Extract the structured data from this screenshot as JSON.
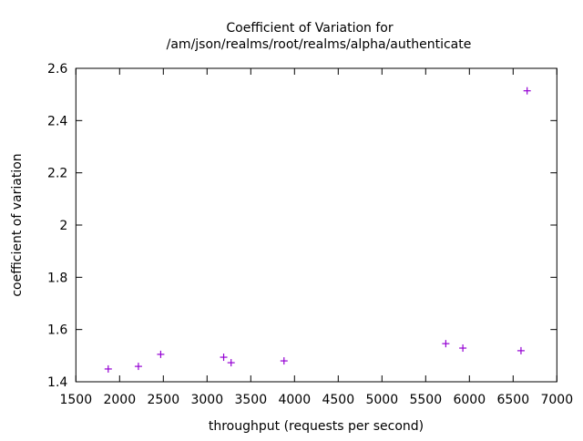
{
  "chart_data": {
    "type": "scatter",
    "title_line1": "Coefficient of Variation for",
    "title_line2": "/am/json/realms/root/realms/alpha/authenticate",
    "xlabel": "throughput (requests per second)",
    "ylabel": "coefficient of variation",
    "xlim": [
      1500,
      7000
    ],
    "ylim": [
      1.4,
      2.6
    ],
    "xticks": [
      1500,
      2000,
      2500,
      3000,
      3500,
      4000,
      4500,
      5000,
      5500,
      6000,
      6500,
      7000
    ],
    "yticks": [
      "1.4",
      "1.6",
      "1.8",
      "2",
      "2.2",
      "2.4",
      "2.6"
    ],
    "grid": false,
    "point_color": "#9400d3",
    "marker": "plus",
    "points": [
      {
        "x": 1870,
        "y": 1.449
      },
      {
        "x": 2215,
        "y": 1.459
      },
      {
        "x": 2470,
        "y": 1.505
      },
      {
        "x": 3190,
        "y": 1.494
      },
      {
        "x": 3275,
        "y": 1.473
      },
      {
        "x": 3880,
        "y": 1.48
      },
      {
        "x": 5730,
        "y": 1.546
      },
      {
        "x": 5925,
        "y": 1.529
      },
      {
        "x": 6590,
        "y": 1.519
      },
      {
        "x": 6660,
        "y": 2.514
      }
    ]
  }
}
